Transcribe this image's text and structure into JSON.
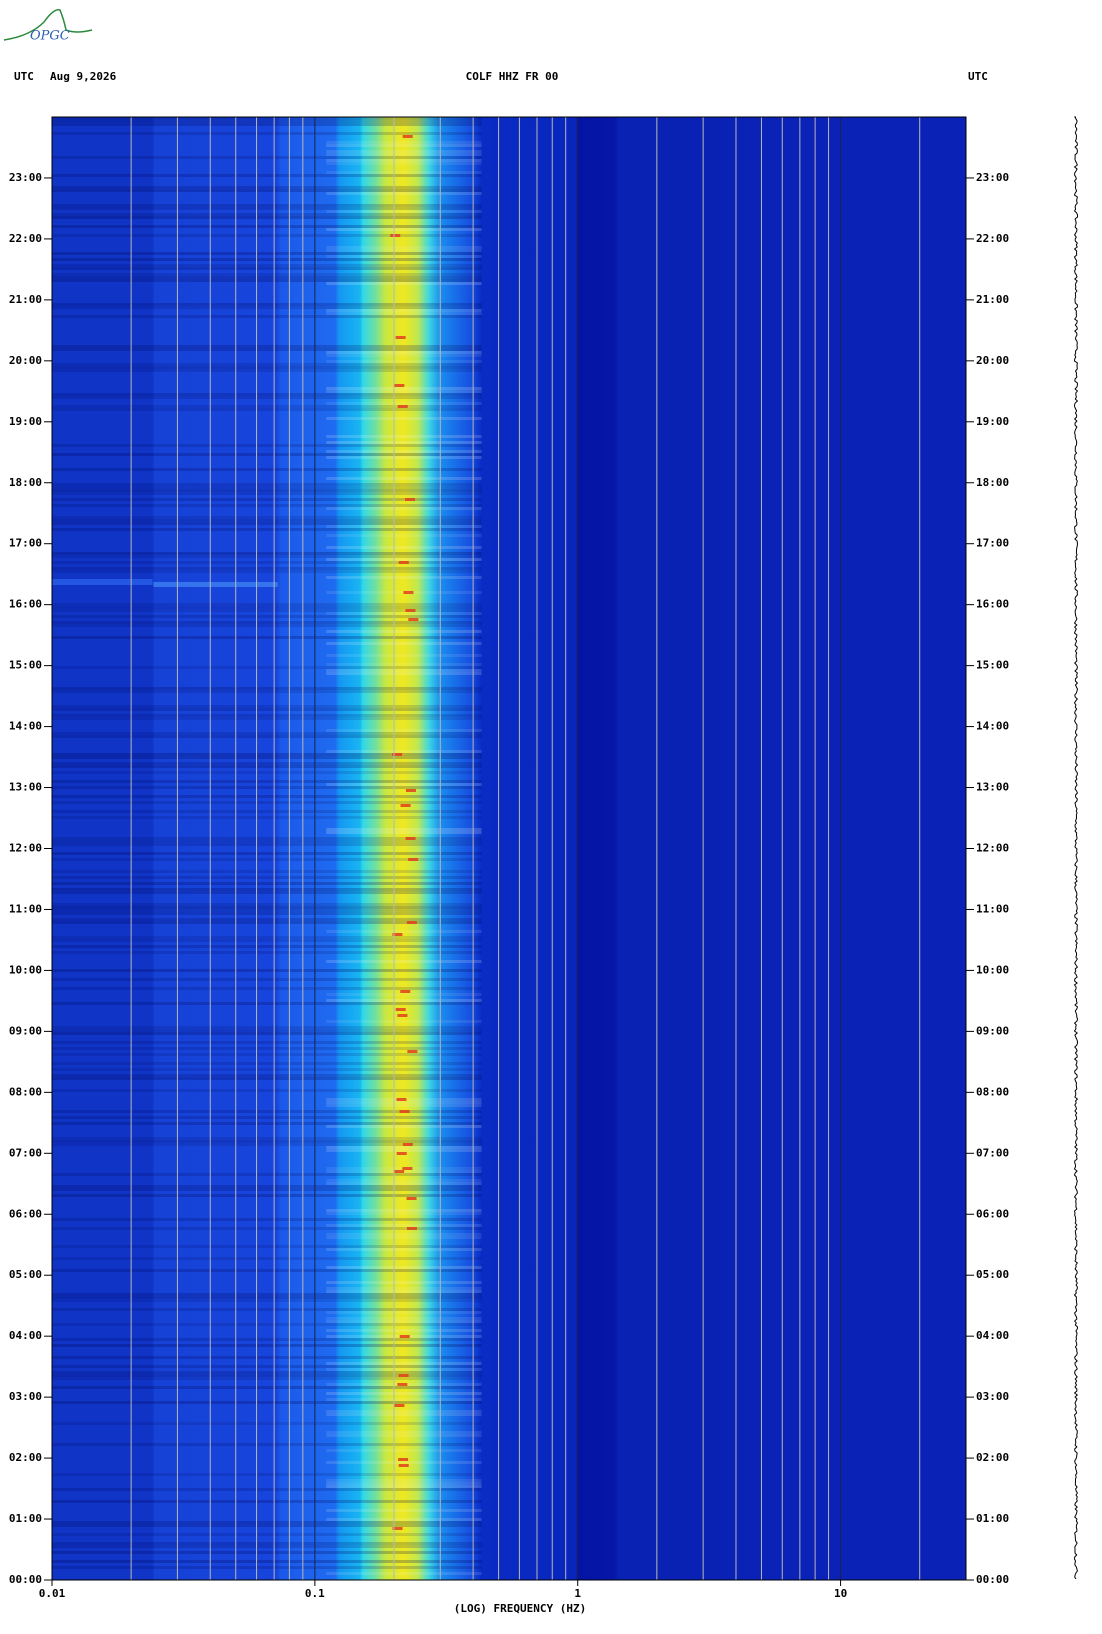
{
  "chart_data": {
    "type": "spectrogram",
    "logo": "OPGC",
    "timezone": "UTC",
    "date": "Aug 9,2026",
    "title": "COLF HHZ FR 00",
    "x_label": "(LOG) FREQUENCY (HZ)",
    "xscale": "log",
    "xlim": [
      0.01,
      30
    ],
    "xticks": [
      0.01,
      0.1,
      1,
      10
    ],
    "xgrid": [
      0.02,
      0.03,
      0.04,
      0.05,
      0.06,
      0.07,
      0.08,
      0.09,
      0.2,
      0.3,
      0.4,
      0.5,
      0.6,
      0.7,
      0.8,
      0.9,
      2,
      3,
      4,
      5,
      6,
      7,
      8,
      9,
      20
    ],
    "ylim": [
      0,
      24
    ],
    "yticks": [
      {
        "value": 0,
        "label": "00:00"
      },
      {
        "value": 1,
        "label": "01:00"
      },
      {
        "value": 2,
        "label": "02:00"
      },
      {
        "value": 3,
        "label": "03:00"
      },
      {
        "value": 4,
        "label": "04:00"
      },
      {
        "value": 5,
        "label": "05:00"
      },
      {
        "value": 6,
        "label": "06:00"
      },
      {
        "value": 7,
        "label": "07:00"
      },
      {
        "value": 8,
        "label": "08:00"
      },
      {
        "value": 9,
        "label": "09:00"
      },
      {
        "value": 10,
        "label": "10:00"
      },
      {
        "value": 11,
        "label": "11:00"
      },
      {
        "value": 12,
        "label": "12:00"
      },
      {
        "value": 13,
        "label": "13:00"
      },
      {
        "value": 14,
        "label": "14:00"
      },
      {
        "value": 15,
        "label": "15:00"
      },
      {
        "value": 16,
        "label": "16:00"
      },
      {
        "value": 17,
        "label": "17:00"
      },
      {
        "value": 18,
        "label": "18:00"
      },
      {
        "value": 19,
        "label": "19:00"
      },
      {
        "value": 20,
        "label": "20:00"
      },
      {
        "value": 21,
        "label": "21:00"
      },
      {
        "value": 22,
        "label": "22:00"
      },
      {
        "value": 23,
        "label": "23:00"
      }
    ]
  }
}
